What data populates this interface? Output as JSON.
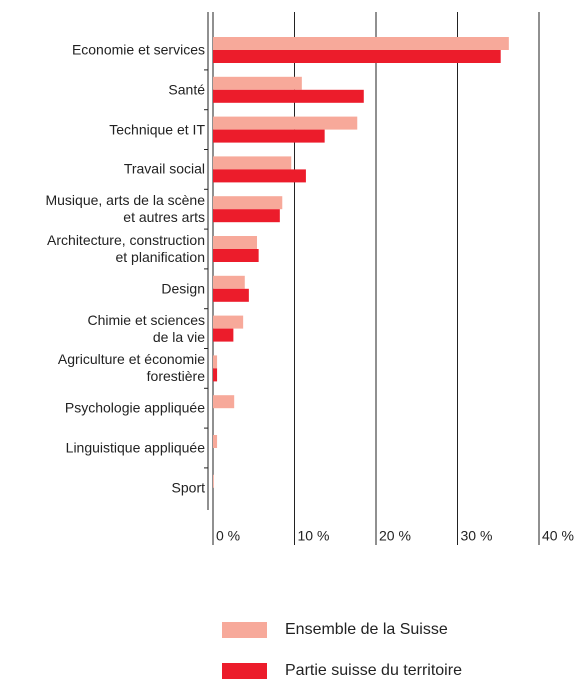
{
  "chart_data": {
    "type": "hbar",
    "categories": [
      "Economie et services",
      "Santé",
      "Technique et IT",
      "Travail social",
      "Musique, arts de la scène\net autres arts",
      "Architecture, construction\net planification",
      "Design",
      "Chimie et sciences\nde la vie",
      "Agriculture et économie\nforestière",
      "Psychologie appliquée",
      "Linguistique appliquée",
      "Sport"
    ],
    "series": [
      {
        "name": "Ensemble de la Suisse",
        "color": "#f7a99a",
        "values": [
          36.3,
          10.9,
          17.7,
          9.6,
          8.5,
          5.4,
          3.9,
          3.7,
          0.5,
          2.6,
          0.5,
          0.1
        ]
      },
      {
        "name": "Partie suisse du territoire",
        "color": "#ec1c2b",
        "values": [
          35.3,
          18.5,
          13.7,
          11.4,
          8.2,
          5.6,
          4.4,
          2.5,
          0.5,
          0,
          0,
          0
        ]
      }
    ],
    "xlim": [
      0,
      40
    ],
    "xticks": [
      {
        "value": 0,
        "label": "0 %"
      },
      {
        "value": 10,
        "label": "10 %"
      },
      {
        "value": 20,
        "label": "20 %"
      },
      {
        "value": 30,
        "label": "30 %"
      },
      {
        "value": 40,
        "label": "40 %"
      }
    ],
    "grid": true
  }
}
